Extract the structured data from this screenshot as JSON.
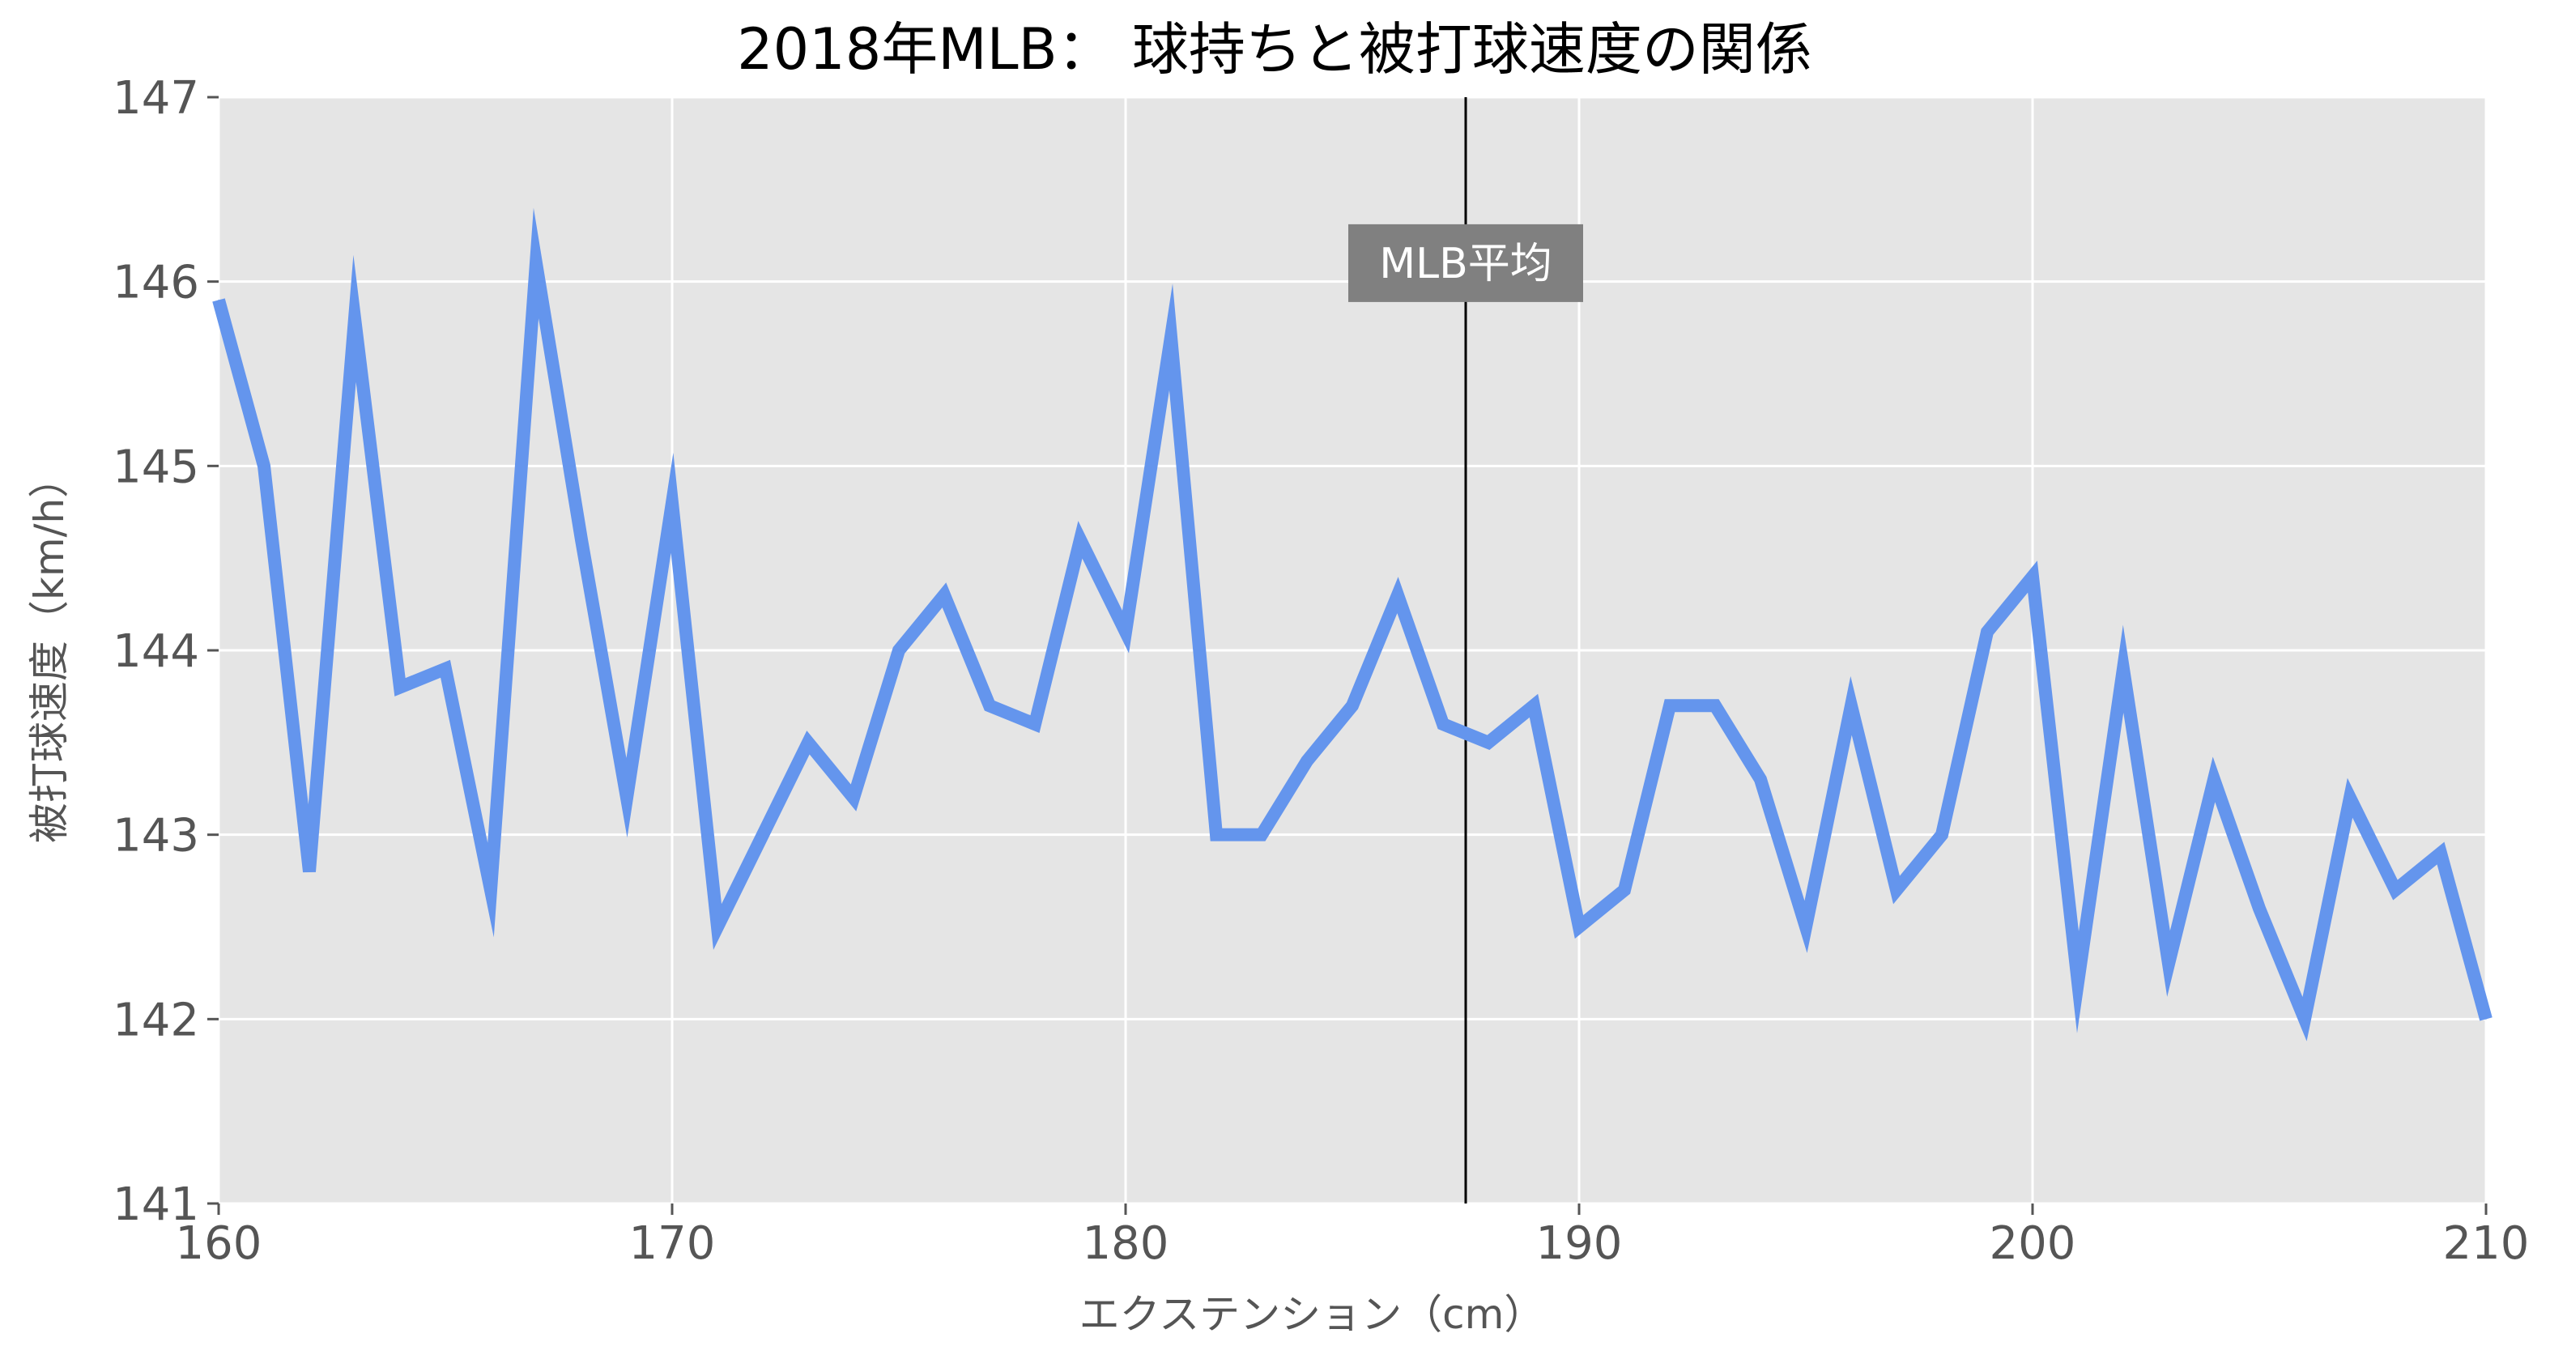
{
  "chart_data": {
    "type": "line",
    "title": "2018年MLB： 球持ちと被打球速度の関係",
    "xlabel": "エクステンション（cm）",
    "ylabel": "被打球速度（km/h）",
    "xlim": [
      160,
      210
    ],
    "ylim": [
      141,
      147
    ],
    "xticks": [
      160,
      170,
      180,
      190,
      200,
      210
    ],
    "yticks": [
      141,
      142,
      143,
      144,
      145,
      146,
      147
    ],
    "grid": true,
    "line_color": "#6495ED",
    "background_color": "#E5E5E5",
    "reference_line": {
      "x": 187.5,
      "label": "MLB平均",
      "label_y": 146.1
    },
    "series": [
      {
        "x": [
          160,
          161,
          162,
          163,
          164,
          165,
          166,
          167,
          168,
          169,
          170,
          171,
          172,
          173,
          174,
          175,
          176,
          177,
          178,
          179,
          180,
          181,
          182,
          183,
          184,
          185,
          186,
          187,
          188,
          189,
          190,
          191,
          192,
          193,
          194,
          195,
          196,
          197,
          198,
          199,
          200,
          201,
          202,
          203,
          204,
          205,
          206,
          207,
          208,
          209,
          210
        ],
        "values": [
          145.9,
          145.0,
          142.8,
          145.8,
          143.8,
          143.9,
          142.7,
          146.1,
          144.6,
          143.2,
          144.8,
          142.5,
          143.0,
          143.5,
          143.2,
          144.0,
          144.3,
          143.7,
          143.6,
          144.6,
          144.1,
          145.7,
          143.0,
          143.0,
          143.4,
          143.7,
          144.3,
          143.6,
          143.5,
          143.7,
          142.5,
          142.7,
          143.7,
          143.7,
          143.3,
          142.5,
          143.7,
          142.7,
          143.0,
          144.1,
          144.4,
          142.2,
          143.9,
          142.3,
          143.3,
          142.6,
          142.0,
          143.2,
          142.7,
          142.9,
          142.0
        ]
      }
    ]
  }
}
